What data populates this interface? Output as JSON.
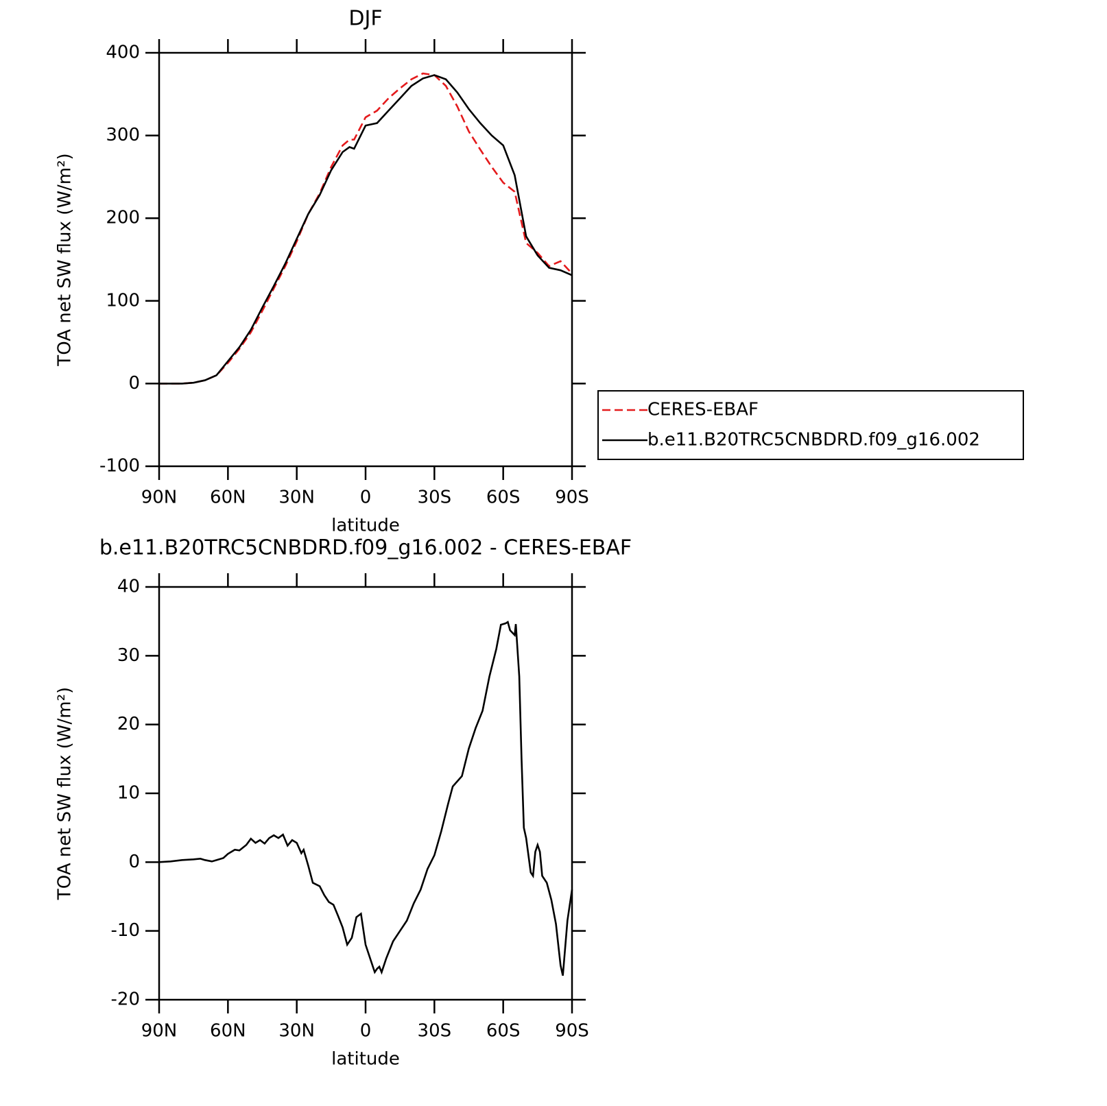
{
  "chart_data": [
    {
      "type": "line",
      "title": "DJF",
      "xlabel": "latitude",
      "ylabel": "TOA net SW flux (W/m²)",
      "xlim": [
        90,
        -90
      ],
      "ylim": [
        -100,
        400
      ],
      "xticks": [
        {
          "value": 90,
          "label": "90N"
        },
        {
          "value": 60,
          "label": "60N"
        },
        {
          "value": 30,
          "label": "30N"
        },
        0,
        {
          "value": -30,
          "label": "30S"
        },
        {
          "value": -60,
          "label": "60S"
        },
        {
          "value": -90,
          "label": "90S"
        }
      ],
      "yticks": [
        -100,
        0,
        100,
        200,
        300,
        400
      ],
      "legend": "right",
      "x": [
        90,
        85,
        80,
        75,
        70,
        65,
        60,
        55,
        50,
        45,
        40,
        35,
        30,
        25,
        20,
        15,
        10,
        7,
        5,
        0,
        -5,
        -10,
        -15,
        -20,
        -25,
        -30,
        -35,
        -40,
        -45,
        -50,
        -55,
        -60,
        -65,
        -70,
        -75,
        -80,
        -85,
        -90
      ],
      "series": [
        {
          "name": "CERES-EBAF",
          "color": "#e41a1c",
          "dash": "dashed",
          "values": [
            0,
            0,
            0,
            1,
            4,
            10,
            25,
            42,
            62,
            88,
            115,
            142,
            172,
            205,
            230,
            262,
            288,
            295,
            295,
            322,
            330,
            345,
            357,
            368,
            375,
            373,
            360,
            335,
            305,
            283,
            262,
            243,
            232,
            170,
            158,
            142,
            148,
            133
          ]
        },
        {
          "name": "b.e11.B20TRC5CNBDRD.f09_g16.002",
          "color": "#000000",
          "dash": "solid",
          "values": [
            0,
            0,
            0,
            1,
            4,
            10,
            27,
            44,
            65,
            92,
            118,
            145,
            175,
            205,
            228,
            258,
            280,
            286,
            284,
            312,
            315,
            330,
            345,
            360,
            369,
            373,
            368,
            352,
            332,
            315,
            300,
            288,
            252,
            178,
            155,
            140,
            137,
            131
          ]
        }
      ]
    },
    {
      "type": "line",
      "title": "b.e11.B20TRC5CNBDRD.f09_g16.002 - CERES-EBAF",
      "xlabel": "latitude",
      "ylabel": "TOA net SW flux (W/m²)",
      "xlim": [
        90,
        -90
      ],
      "ylim": [
        -20,
        40
      ],
      "xticks": [
        {
          "value": 90,
          "label": "90N"
        },
        {
          "value": 60,
          "label": "60N"
        },
        {
          "value": 30,
          "label": "30N"
        },
        0,
        {
          "value": -30,
          "label": "30S"
        },
        {
          "value": -60,
          "label": "60S"
        },
        {
          "value": -90,
          "label": "90S"
        }
      ],
      "yticks": [
        -20,
        -10,
        0,
        10,
        20,
        30,
        40
      ],
      "x": [
        90,
        85,
        80,
        75,
        72,
        70,
        67,
        65,
        62,
        60,
        57,
        55,
        52,
        50,
        48,
        46,
        44,
        42,
        40,
        38,
        36,
        34,
        32,
        30,
        28,
        27,
        25,
        23,
        20,
        18,
        16,
        14,
        12,
        10,
        8,
        6,
        4,
        2,
        0,
        -2,
        -4,
        -5,
        -6,
        -7,
        -9,
        -12,
        -15,
        -18,
        -21,
        -24,
        -27,
        -30,
        -33,
        -36,
        -38,
        -42,
        -45,
        -48,
        -51,
        -54,
        -57,
        -59,
        -61,
        -62,
        -63,
        -65,
        -65.5,
        -67,
        -68,
        -69,
        -70,
        -72,
        -73,
        -74,
        -75,
        -76,
        -77,
        -79,
        -81,
        -83,
        -85,
        -86,
        -88,
        -90
      ],
      "series": [
        {
          "name": "b.e11.B20TRC5CNBDRD.f09_g16.002 - CERES-EBAF",
          "color": "#000000",
          "dash": "solid",
          "values": [
            0,
            0.1,
            0.3,
            0.4,
            0.5,
            0.3,
            0.1,
            0.3,
            0.6,
            1.2,
            1.8,
            1.7,
            2.5,
            3.4,
            2.8,
            3.2,
            2.7,
            3.5,
            3.9,
            3.5,
            4.0,
            2.4,
            3.2,
            2.8,
            1.3,
            1.8,
            -0.5,
            -3.0,
            -3.5,
            -4.8,
            -5.8,
            -6.2,
            -7.8,
            -9.5,
            -12.0,
            -11.0,
            -8.0,
            -7.5,
            -12.0,
            -14.0,
            -16.0,
            -15.5,
            -15.2,
            -16.0,
            -14.0,
            -11.5,
            -10.0,
            -8.5,
            -6.0,
            -4.0,
            -1.0,
            1.0,
            4.5,
            8.5,
            11.0,
            12.5,
            16.5,
            19.5,
            22,
            27,
            31,
            34.5,
            34.7,
            34.9,
            33.7,
            33.0,
            34.6,
            27,
            15,
            5,
            3.5,
            -1.5,
            -2.0,
            1.5,
            2.5,
            1.5,
            -2.0,
            -3.0,
            -5.5,
            -9.0,
            -15,
            -16.5,
            -8.5,
            -4.0
          ]
        }
      ]
    }
  ]
}
